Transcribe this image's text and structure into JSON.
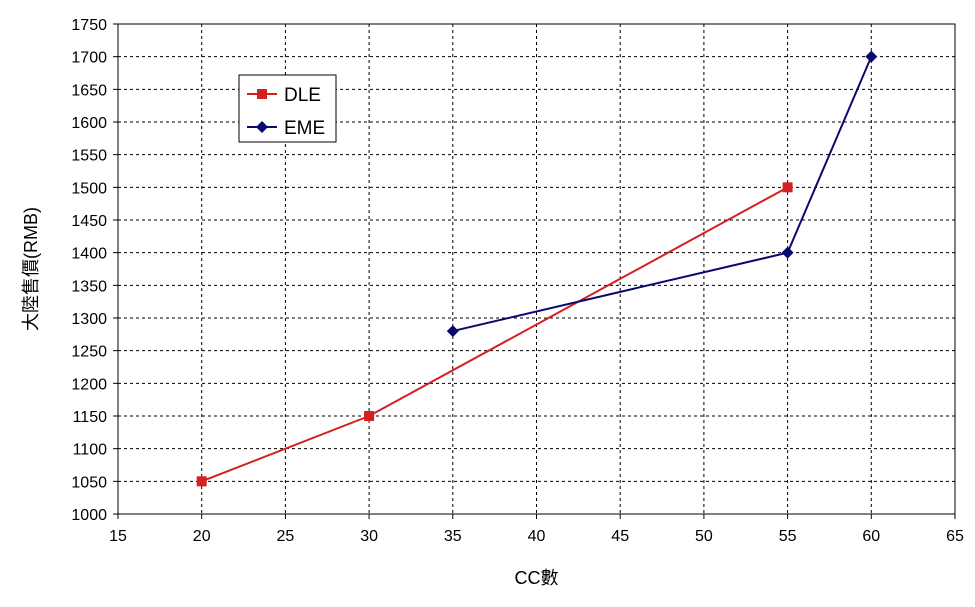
{
  "chart_data": {
    "type": "line",
    "title": "",
    "xlabel": "CC數",
    "ylabel": "大陸售價(RMB)",
    "xlim": [
      15,
      65
    ],
    "ylim": [
      1000,
      1750
    ],
    "x_ticks": [
      15,
      20,
      25,
      30,
      35,
      40,
      45,
      50,
      55,
      60,
      65
    ],
    "y_ticks": [
      1000,
      1050,
      1100,
      1150,
      1200,
      1250,
      1300,
      1350,
      1400,
      1450,
      1500,
      1550,
      1600,
      1650,
      1700,
      1750
    ],
    "grid": true,
    "legend_position": "top-left",
    "series": [
      {
        "name": "DLE",
        "color": "#d42020",
        "marker": "square",
        "x": [
          20,
          30,
          55
        ],
        "y": [
          1050,
          1150,
          1500
        ]
      },
      {
        "name": "EME",
        "color": "#0a0a6e",
        "marker": "diamond",
        "x": [
          35,
          55,
          60
        ],
        "y": [
          1280,
          1400,
          1700
        ]
      }
    ]
  }
}
